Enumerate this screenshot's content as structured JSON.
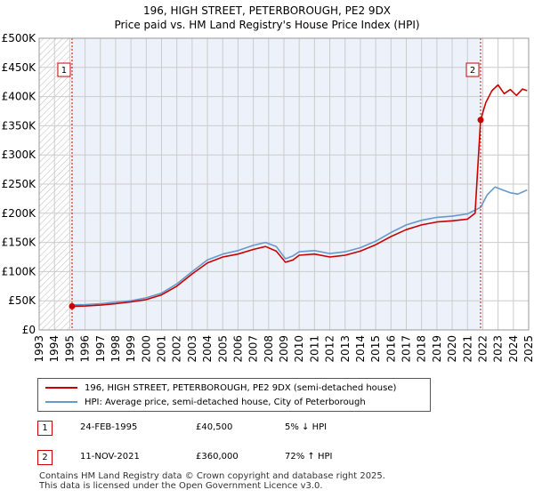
{
  "chart_data": {
    "type": "line",
    "title": "196, HIGH STREET, PETERBOROUGH, PE2 9DX",
    "subtitle": "Price paid vs. HM Land Registry's House Price Index (HPI)",
    "xlabel": "",
    "ylabel": "",
    "xlim": [
      1993,
      2025
    ],
    "ylim": [
      0,
      500000
    ],
    "x_ticks": [
      "1993",
      "1994",
      "1995",
      "1996",
      "1997",
      "1998",
      "1999",
      "2000",
      "2001",
      "2002",
      "2003",
      "2004",
      "2005",
      "2006",
      "2007",
      "2008",
      "2009",
      "2010",
      "2011",
      "2012",
      "2013",
      "2014",
      "2015",
      "2016",
      "2017",
      "2018",
      "2019",
      "2020",
      "2021",
      "2022",
      "2023",
      "2024",
      "2025"
    ],
    "y_ticks": [
      {
        "value": 0,
        "label": "£0"
      },
      {
        "value": 50000,
        "label": "£50K"
      },
      {
        "value": 100000,
        "label": "£100K"
      },
      {
        "value": 150000,
        "label": "£150K"
      },
      {
        "value": 200000,
        "label": "£200K"
      },
      {
        "value": 250000,
        "label": "£250K"
      },
      {
        "value": 300000,
        "label": "£300K"
      },
      {
        "value": 350000,
        "label": "£350K"
      },
      {
        "value": 400000,
        "label": "£400K"
      },
      {
        "value": 450000,
        "label": "£450K"
      },
      {
        "value": 500000,
        "label": "£500K"
      }
    ],
    "grid": true,
    "hatched_before": 1995.15,
    "shaded_between": [
      1995.15,
      2021.86
    ],
    "series": [
      {
        "name": "196, HIGH STREET, PETERBOROUGH, PE2 9DX (semi-detached house)",
        "color": "#cc0000",
        "x": [
          1995.15,
          1996,
          1997,
          1998,
          1999,
          2000,
          2001,
          2002,
          2003,
          2004,
          2005,
          2006,
          2007,
          2007.8,
          2008.5,
          2009.1,
          2009.6,
          2010,
          2011,
          2012,
          2013,
          2014,
          2015,
          2016,
          2017,
          2018,
          2019,
          2020,
          2021,
          2021.5,
          2021.86,
          2022.2,
          2022.6,
          2023,
          2023.4,
          2023.8,
          2024.2,
          2024.6,
          2024.9
        ],
        "values": [
          40500,
          41000,
          42500,
          45000,
          48000,
          52000,
          60000,
          75000,
          96000,
          115000,
          125000,
          130000,
          138000,
          143000,
          135000,
          116000,
          120000,
          128000,
          130000,
          125000,
          128000,
          135000,
          146000,
          160000,
          172000,
          180000,
          185000,
          187000,
          190000,
          200000,
          360000,
          390000,
          410000,
          420000,
          405000,
          412000,
          402000,
          413000,
          410000
        ]
      },
      {
        "name": "HPI: Average price, semi-detached house, City of Peterborough",
        "color": "#6699cc",
        "x": [
          1995.15,
          1996,
          1997,
          1998,
          1999,
          2000,
          2001,
          2002,
          2003,
          2004,
          2005,
          2006,
          2007,
          2007.8,
          2008.5,
          2009.1,
          2009.6,
          2010,
          2011,
          2012,
          2013,
          2014,
          2015,
          2016,
          2017,
          2018,
          2019,
          2020,
          2021,
          2021.86,
          2022.3,
          2022.8,
          2023.3,
          2023.8,
          2024.3,
          2024.9
        ],
        "values": [
          43000,
          43500,
          45000,
          47500,
          50000,
          55000,
          63000,
          79000,
          100000,
          120000,
          130000,
          136000,
          145000,
          150000,
          143000,
          122000,
          127000,
          134000,
          136000,
          131000,
          134000,
          141000,
          152000,
          167000,
          180000,
          188000,
          193000,
          195000,
          199000,
          210000,
          232000,
          245000,
          240000,
          235000,
          233000,
          240000
        ]
      }
    ],
    "sales": [
      {
        "label": "1",
        "x": 1995.15,
        "value": 40500
      },
      {
        "label": "2",
        "x": 2021.86,
        "value": 360000
      }
    ],
    "legend_position": "bottom",
    "legend": [
      "196, HIGH STREET, PETERBOROUGH, PE2 9DX (semi-detached house)",
      "HPI: Average price, semi-detached house, City of Peterborough"
    ]
  },
  "transactions": [
    {
      "num": "1",
      "date": "24-FEB-1995",
      "price": "£40,500",
      "hpi": "5% ↓ HPI"
    },
    {
      "num": "2",
      "date": "11-NOV-2021",
      "price": "£360,000",
      "hpi": "72% ↑ HPI"
    }
  ],
  "footer": {
    "line1": "Contains HM Land Registry data © Crown copyright and database right 2025.",
    "line2": "This data is licensed under the Open Government Licence v3.0."
  },
  "colors": {
    "property": "#cc0000",
    "hpi": "#6699cc",
    "grid": "#cccccc",
    "shade": "#dde6f5"
  }
}
